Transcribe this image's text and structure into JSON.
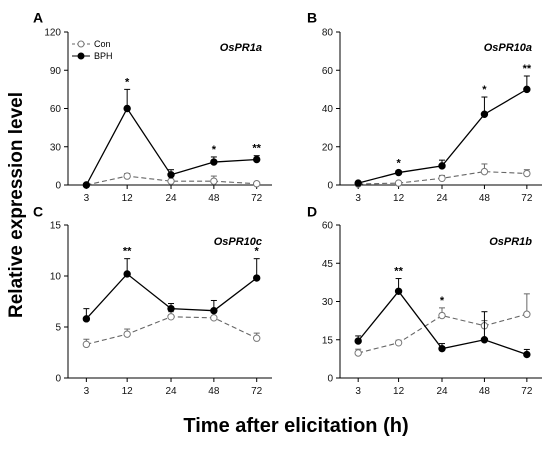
{
  "figure": {
    "ylabel": "Relative expression level",
    "xlabel": "Time after elicitation (h)"
  },
  "legend": {
    "items": [
      {
        "label": "Con",
        "style": "dashed-open"
      },
      {
        "label": "BPH",
        "style": "solid-filled"
      }
    ]
  },
  "chart_data": [
    {
      "panel": "A",
      "type": "line",
      "gene": "OsPR1a",
      "categories": [
        "3",
        "12",
        "24",
        "48",
        "72"
      ],
      "ylim": [
        0,
        120
      ],
      "yticks": [
        0,
        30,
        60,
        90,
        120
      ],
      "series": [
        {
          "name": "Con",
          "values": [
            0,
            7,
            3,
            3,
            1
          ],
          "errors": [
            0.5,
            2,
            1.5,
            4,
            1
          ]
        },
        {
          "name": "BPH",
          "values": [
            0,
            60,
            8,
            18,
            20
          ],
          "errors": [
            0.5,
            15,
            4,
            4,
            3
          ]
        }
      ],
      "significance": [
        "",
        "*",
        "",
        "*",
        "**"
      ]
    },
    {
      "panel": "B",
      "type": "line",
      "gene": "OsPR10a",
      "categories": [
        "3",
        "12",
        "24",
        "48",
        "72"
      ],
      "ylim": [
        0,
        80
      ],
      "yticks": [
        0,
        20,
        40,
        60,
        80
      ],
      "series": [
        {
          "name": "Con",
          "values": [
            0.5,
            1,
            3.5,
            7,
            6
          ],
          "errors": [
            0.3,
            0.5,
            1.5,
            4,
            2
          ]
        },
        {
          "name": "BPH",
          "values": [
            1,
            6.5,
            10,
            37,
            50
          ],
          "errors": [
            0.5,
            1,
            3,
            9,
            7
          ]
        }
      ],
      "significance": [
        "",
        "*",
        "",
        "*",
        "**"
      ]
    },
    {
      "panel": "C",
      "type": "line",
      "gene": "OsPR10c",
      "categories": [
        "3",
        "12",
        "24",
        "48",
        "72"
      ],
      "ylim": [
        0,
        15
      ],
      "yticks": [
        0,
        5,
        10,
        15
      ],
      "series": [
        {
          "name": "Con",
          "values": [
            3.3,
            4.3,
            6.0,
            5.9,
            3.9
          ],
          "errors": [
            0.5,
            0.5,
            0.5,
            0.5,
            0.5
          ]
        },
        {
          "name": "BPH",
          "values": [
            5.8,
            10.2,
            6.8,
            6.6,
            9.8
          ],
          "errors": [
            1.0,
            1.5,
            0.5,
            1.0,
            1.9
          ]
        }
      ],
      "significance": [
        "",
        "**",
        "",
        "",
        "*"
      ]
    },
    {
      "panel": "D",
      "type": "line",
      "gene": "OsPR1b",
      "categories": [
        "3",
        "12",
        "24",
        "48",
        "72"
      ],
      "ylim": [
        0,
        60
      ],
      "yticks": [
        0,
        15,
        30,
        45,
        60
      ],
      "series": [
        {
          "name": "Con",
          "values": [
            9.8,
            13.8,
            24.5,
            20.5,
            25.0
          ],
          "errors": [
            1.5,
            1.0,
            3.0,
            2.0,
            8.0
          ]
        },
        {
          "name": "BPH",
          "values": [
            14.5,
            34.0,
            11.5,
            15.0,
            9.2
          ],
          "errors": [
            2.0,
            5.0,
            2.0,
            11.0,
            2.0
          ]
        }
      ],
      "significance": [
        "",
        "**",
        "*",
        "",
        ""
      ]
    }
  ]
}
